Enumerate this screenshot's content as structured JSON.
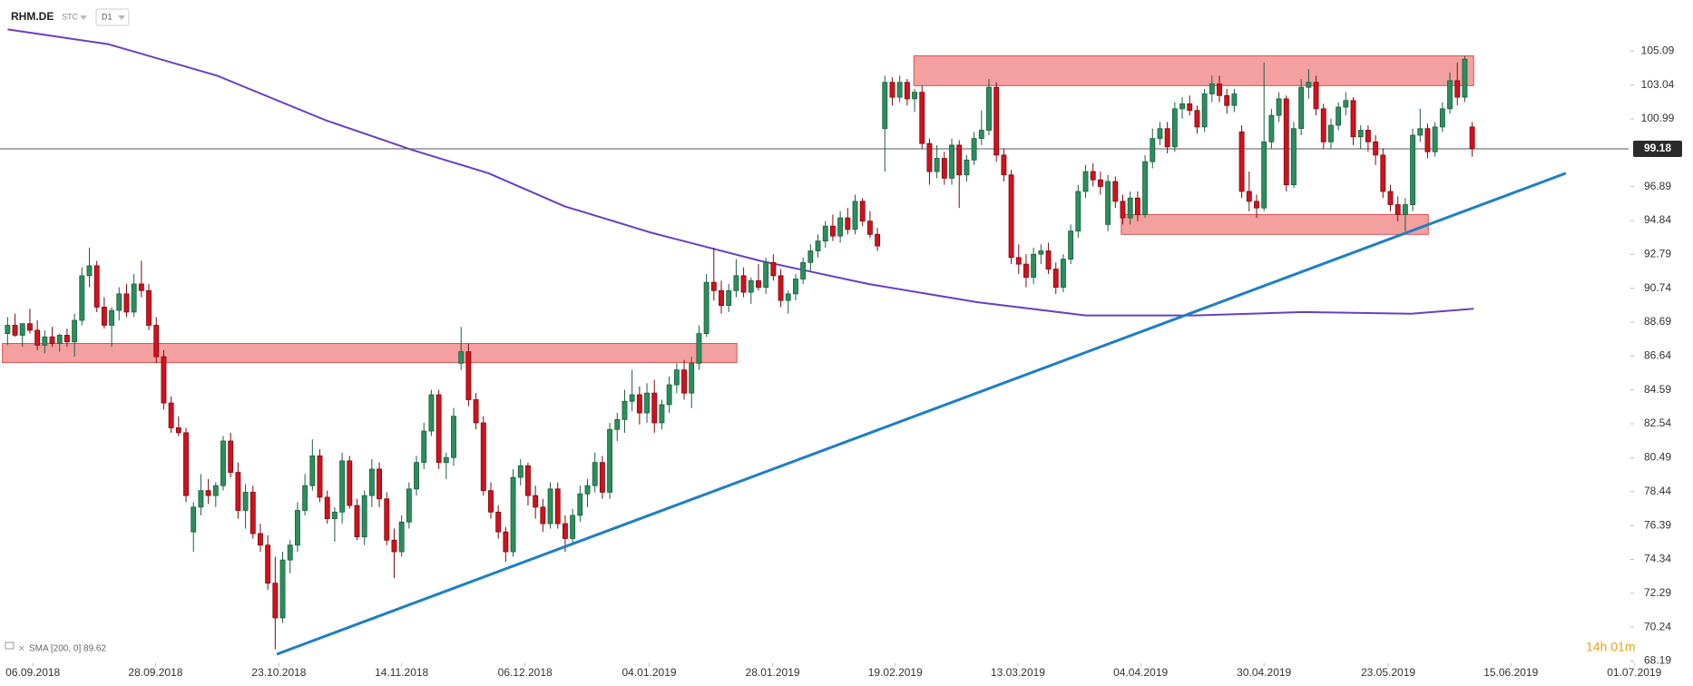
{
  "chart_data": {
    "type": "candlestick",
    "title": "RHM.DE",
    "exchange": "STC",
    "interval": "D1",
    "legend_label": "SMA [200, 0] 89.62",
    "timer": "14h 01m",
    "last_price": 99.18,
    "colors": {
      "up": "#2a8f5c",
      "down": "#d3111c",
      "sma": "#6a3fc4",
      "trend": "#1f7fc4",
      "zone": "#f08080"
    },
    "xlim": [
      -1.02,
      226.7
    ],
    "ylim": [
      68.19,
      108.18
    ],
    "yticks": [
      105.09,
      103.04,
      100.99,
      96.89,
      94.84,
      92.79,
      90.74,
      88.69,
      86.64,
      84.59,
      82.54,
      80.49,
      78.44,
      76.39,
      74.34,
      72.29,
      70.24,
      68.19
    ],
    "xticks": [
      {
        "value": 3.4,
        "label": "06.09.2018"
      },
      {
        "value": 19.9,
        "label": "28.09.2018"
      },
      {
        "value": 36.5,
        "label": "23.10.2018"
      },
      {
        "value": 53,
        "label": "14.11.2018"
      },
      {
        "value": 69.6,
        "label": "06.12.2018"
      },
      {
        "value": 86.3,
        "label": "04.01.2019"
      },
      {
        "value": 102.9,
        "label": "28.01.2019"
      },
      {
        "value": 119.4,
        "label": "19.02.2019"
      },
      {
        "value": 135.9,
        "label": "13.03.2019"
      },
      {
        "value": 152.4,
        "label": "04.04.2019"
      },
      {
        "value": 169,
        "label": "30.04.2019"
      },
      {
        "value": 185.7,
        "label": "23.05.2019"
      },
      {
        "value": 202.2,
        "label": "15.06.2019"
      },
      {
        "value": 218.8,
        "label": "01.07.2019"
      }
    ],
    "candles": [
      [
        88,
        89,
        87.3,
        88.5
      ],
      [
        88.5,
        89.2,
        87.8,
        87.9
      ],
      [
        87.9,
        88.6,
        87.2,
        88.6
      ],
      [
        88.6,
        89.5,
        88,
        88.2
      ],
      [
        88.2,
        88.8,
        87,
        87.3
      ],
      [
        87.3,
        88.2,
        86.8,
        87.8
      ],
      [
        87.8,
        88.4,
        87.2,
        87.4
      ],
      [
        87.4,
        88,
        86.9,
        87.9
      ],
      [
        87.9,
        88.3,
        87.2,
        87.5
      ],
      [
        87.5,
        89.2,
        86.6,
        88.8
      ],
      [
        88.8,
        92,
        88.5,
        91.5
      ],
      [
        91.5,
        93.2,
        90.8,
        92.1
      ],
      [
        92.1,
        92.4,
        89.3,
        89.6
      ],
      [
        89.6,
        90.2,
        88.3,
        88.5
      ],
      [
        88.5,
        89.6,
        87.2,
        89.4
      ],
      [
        89.4,
        90.8,
        88.8,
        90.4
      ],
      [
        90.4,
        91,
        89,
        89.3
      ],
      [
        89.3,
        91.6,
        89,
        91
      ],
      [
        91,
        92.4,
        90.2,
        90.6
      ],
      [
        90.6,
        91,
        88.2,
        88.5
      ],
      [
        88.5,
        89,
        86.2,
        86.6
      ],
      [
        86.6,
        87,
        83.4,
        83.8
      ],
      [
        83.8,
        84.2,
        82,
        82.3
      ],
      [
        82.3,
        83,
        81.8,
        82
      ],
      [
        82,
        82.3,
        77.8,
        78.2
      ],
      [
        76,
        77.8,
        74.8,
        77.5
      ],
      [
        77.5,
        79.5,
        77,
        78.5
      ],
      [
        78.5,
        79.2,
        77.7,
        78.2
      ],
      [
        78.2,
        79,
        77.5,
        78.8
      ],
      [
        78.8,
        81.8,
        78.5,
        81.5
      ],
      [
        81.5,
        82,
        79.3,
        79.6
      ],
      [
        79.6,
        80.2,
        76.8,
        77.3
      ],
      [
        77.3,
        78.9,
        76.2,
        78.4
      ],
      [
        78.4,
        78.8,
        75.6,
        75.9
      ],
      [
        75.9,
        76.5,
        74.8,
        75.2
      ],
      [
        75.2,
        75.8,
        72.5,
        72.9
      ],
      [
        72.9,
        74.5,
        68.9,
        70.8
      ],
      [
        70.8,
        74.8,
        70.5,
        74.3
      ],
      [
        74.3,
        75.5,
        73.5,
        75.2
      ],
      [
        75.2,
        77.8,
        74.8,
        77.3
      ],
      [
        77.3,
        79.5,
        77,
        78.8
      ],
      [
        78.8,
        81.6,
        78.5,
        80.6
      ],
      [
        80.6,
        81,
        77.8,
        78.1
      ],
      [
        78.1,
        78.5,
        76.5,
        76.8
      ],
      [
        76.8,
        77.5,
        75.4,
        77.2
      ],
      [
        77.2,
        80.8,
        76.5,
        80.3
      ],
      [
        80.3,
        80.6,
        77.4,
        77.6
      ],
      [
        77.6,
        78,
        75.5,
        75.7
      ],
      [
        75.7,
        78.5,
        75.2,
        78.2
      ],
      [
        78.2,
        80.4,
        77.5,
        79.8
      ],
      [
        79.8,
        80.2,
        77.5,
        78
      ],
      [
        78,
        78.4,
        75.2,
        75.5
      ],
      [
        75.5,
        76.2,
        73.2,
        74.8
      ],
      [
        74.8,
        77,
        74.5,
        76.6
      ],
      [
        76.6,
        79,
        76.2,
        78.6
      ],
      [
        78.6,
        80.6,
        78.2,
        80.2
      ],
      [
        80.2,
        82.6,
        79.8,
        82.1
      ],
      [
        82.1,
        84.6,
        81.8,
        84.3
      ],
      [
        84.3,
        84.6,
        79.8,
        80.2
      ],
      [
        80.2,
        80.8,
        79.2,
        80.5
      ],
      [
        80.5,
        83.5,
        80,
        83
      ],
      [
        86.2,
        88.4,
        85.8,
        86.9
      ],
      [
        86.9,
        87.4,
        83.6,
        84
      ],
      [
        84,
        84.4,
        82.2,
        82.6
      ],
      [
        82.6,
        83,
        78.2,
        78.5
      ],
      [
        78.5,
        79,
        76.8,
        77.2
      ],
      [
        77.2,
        77.6,
        75.6,
        76
      ],
      [
        76,
        76.3,
        74.2,
        74.8
      ],
      [
        74.8,
        79.8,
        74.5,
        79.3
      ],
      [
        79.3,
        80.4,
        78.8,
        80
      ],
      [
        80,
        80.2,
        77.6,
        78.2
      ],
      [
        78.2,
        78.8,
        76.8,
        77.5
      ],
      [
        77.5,
        78,
        76,
        76.5
      ],
      [
        76.5,
        79,
        76.2,
        78.6
      ],
      [
        78.6,
        79,
        76.2,
        76.5
      ],
      [
        76.5,
        77,
        74.8,
        75.6
      ],
      [
        75.6,
        77.4,
        75.2,
        77
      ],
      [
        77,
        78.8,
        76.6,
        78.3
      ],
      [
        78.3,
        79.2,
        77.5,
        78.8
      ],
      [
        78.8,
        80.8,
        78.4,
        80.2
      ],
      [
        80.2,
        80.6,
        78,
        78.4
      ],
      [
        78.4,
        82.6,
        78,
        82.2
      ],
      [
        82.2,
        83.2,
        81.5,
        82.8
      ],
      [
        82.8,
        84.6,
        82,
        83.9
      ],
      [
        83.9,
        85.8,
        83.3,
        84.3
      ],
      [
        84.3,
        84.8,
        82.5,
        83.2
      ],
      [
        83.2,
        85,
        82.6,
        84.4
      ],
      [
        84.4,
        85.2,
        82,
        82.6
      ],
      [
        82.6,
        84,
        82.2,
        83.7
      ],
      [
        83.7,
        85.4,
        83.2,
        84.9
      ],
      [
        84.9,
        86.2,
        84.4,
        85.8
      ],
      [
        85.8,
        86.4,
        84,
        84.4
      ],
      [
        84.4,
        86.6,
        83.5,
        86.2
      ],
      [
        86.2,
        88.5,
        85.8,
        88
      ],
      [
        88,
        91.6,
        87.8,
        91.1
      ],
      [
        91.1,
        93.2,
        90,
        90.6
      ],
      [
        90.6,
        91.2,
        89.2,
        89.7
      ],
      [
        89.7,
        91,
        89.3,
        90.6
      ],
      [
        90.6,
        92.5,
        90.2,
        91.5
      ],
      [
        91.5,
        92,
        90.2,
        90.5
      ],
      [
        90.5,
        91.4,
        89.8,
        91.2
      ],
      [
        91.2,
        92.2,
        90.6,
        90.8
      ],
      [
        90.8,
        92.6,
        90.4,
        92.3
      ],
      [
        92.3,
        92.8,
        91.2,
        91.5
      ],
      [
        91.5,
        91.9,
        89.6,
        90
      ],
      [
        90,
        90.6,
        89.2,
        90.4
      ],
      [
        90.4,
        91.6,
        90,
        91.3
      ],
      [
        91.3,
        92.6,
        91,
        92.3
      ],
      [
        92.3,
        93.4,
        91.8,
        93
      ],
      [
        93,
        94,
        92.6,
        93.6
      ],
      [
        93.6,
        94.8,
        93.2,
        94.5
      ],
      [
        94.5,
        95.2,
        93.6,
        93.9
      ],
      [
        93.9,
        95.4,
        93.5,
        95
      ],
      [
        95,
        95.6,
        94,
        94.3
      ],
      [
        94.3,
        96.4,
        94,
        96
      ],
      [
        96,
        96.2,
        94.5,
        94.8
      ],
      [
        94.8,
        95.4,
        93.8,
        94
      ],
      [
        94,
        94.4,
        93,
        93.3
      ],
      [
        100.4,
        103.6,
        97.8,
        103.2
      ],
      [
        103.2,
        103.5,
        101.8,
        102.3
      ],
      [
        102.3,
        103.6,
        102,
        103.2
      ],
      [
        103.2,
        103.4,
        101.8,
        102.2
      ],
      [
        102.2,
        102.8,
        101.4,
        102.6
      ],
      [
        102.6,
        103,
        99.2,
        99.5
      ],
      [
        99.5,
        99.8,
        97,
        97.8
      ],
      [
        97.8,
        99.4,
        97.4,
        98.6
      ],
      [
        98.6,
        99,
        97,
        97.4
      ],
      [
        97.4,
        99.8,
        97,
        99.4
      ],
      [
        99.4,
        99.7,
        95.6,
        97.6
      ],
      [
        97.6,
        98.8,
        97.2,
        98.5
      ],
      [
        98.5,
        100.2,
        98.2,
        99.8
      ],
      [
        99.8,
        101.5,
        99.4,
        100.3
      ],
      [
        100.3,
        103.4,
        100,
        102.9
      ],
      [
        102.9,
        103.2,
        98.4,
        98.8
      ],
      [
        98.8,
        99.2,
        97.2,
        97.6
      ],
      [
        97.6,
        97.9,
        92.2,
        92.6
      ],
      [
        92.6,
        93.4,
        91.6,
        92.2
      ],
      [
        92.2,
        92.8,
        90.8,
        91.4
      ],
      [
        91.4,
        93.2,
        91,
        92.8
      ],
      [
        92.8,
        93.4,
        92.2,
        93
      ],
      [
        93,
        93.5,
        91.6,
        91.9
      ],
      [
        91.9,
        92.3,
        90.4,
        90.8
      ],
      [
        90.8,
        92.8,
        90.5,
        92.5
      ],
      [
        92.5,
        94.6,
        92.2,
        94.2
      ],
      [
        94.2,
        97,
        93.8,
        96.6
      ],
      [
        96.6,
        98.2,
        96.2,
        97.8
      ],
      [
        97.8,
        98.3,
        96.9,
        97.3
      ],
      [
        97.3,
        97.8,
        96.4,
        96.9
      ],
      [
        94.6,
        97.6,
        94.2,
        97.2
      ],
      [
        97.2,
        97.5,
        95.6,
        96
      ],
      [
        96,
        96.4,
        94.6,
        95
      ],
      [
        95,
        96.6,
        94.6,
        96.2
      ],
      [
        96.2,
        96.6,
        94.8,
        95.2
      ],
      [
        95.2,
        98.8,
        95,
        98.4
      ],
      [
        98.4,
        100.4,
        98,
        99.8
      ],
      [
        99.8,
        100.8,
        99.4,
        100.4
      ],
      [
        100.4,
        100.8,
        98.9,
        99.3
      ],
      [
        99.3,
        102,
        99,
        101.6
      ],
      [
        101.6,
        102.3,
        101,
        101.9
      ],
      [
        101.9,
        102.4,
        101.2,
        101.5
      ],
      [
        101.5,
        101.8,
        100.1,
        100.5
      ],
      [
        100.5,
        102.8,
        100.2,
        102.5
      ],
      [
        102.5,
        103.6,
        102,
        103.1
      ],
      [
        103.1,
        103.6,
        102,
        102.4
      ],
      [
        102.4,
        102.8,
        101.3,
        101.8
      ],
      [
        101.8,
        102.8,
        101.4,
        102.5
      ],
      [
        100.2,
        100.6,
        96.2,
        96.6
      ],
      [
        96.6,
        97.8,
        95.4,
        96
      ],
      [
        96,
        96.4,
        95,
        95.6
      ],
      [
        95.6,
        104.4,
        95.4,
        99.6
      ],
      [
        99.6,
        101.6,
        99.2,
        101.2
      ],
      [
        101.2,
        102.6,
        100.8,
        102.2
      ],
      [
        102.2,
        102.4,
        96.6,
        97
      ],
      [
        97,
        100.8,
        96.8,
        100.4
      ],
      [
        100.4,
        103.4,
        100,
        102.9
      ],
      [
        102.9,
        104,
        102.2,
        103.2
      ],
      [
        103.2,
        103.6,
        101.2,
        101.6
      ],
      [
        101.6,
        101.9,
        99.2,
        99.6
      ],
      [
        99.6,
        101,
        99.2,
        100.6
      ],
      [
        100.6,
        102,
        100.3,
        101.7
      ],
      [
        101.7,
        102.6,
        101.2,
        102.1
      ],
      [
        102.1,
        102.3,
        99.4,
        99.9
      ],
      [
        99.9,
        100.6,
        99.2,
        100.3
      ],
      [
        100.3,
        100.6,
        99,
        99.6
      ],
      [
        99.6,
        100,
        98.2,
        98.8
      ],
      [
        98.8,
        99.2,
        96.2,
        96.6
      ],
      [
        96.6,
        97,
        95.4,
        95.8
      ],
      [
        95.8,
        96.3,
        94.8,
        95.2
      ],
      [
        95.2,
        96.2,
        94.2,
        95.8
      ],
      [
        95.8,
        100.4,
        95.4,
        100
      ],
      [
        100,
        101.6,
        99.6,
        100.4
      ],
      [
        100.4,
        100.7,
        98.6,
        99
      ],
      [
        99,
        100.8,
        98.7,
        100.5
      ],
      [
        100.5,
        102,
        100.2,
        101.6
      ],
      [
        101.6,
        103.8,
        101.3,
        103.3
      ],
      [
        103.3,
        104.4,
        101.8,
        102.3
      ],
      [
        102.3,
        104.8,
        102,
        104.6
      ],
      [
        100.5,
        100.8,
        98.7,
        99.18
      ]
    ],
    "sma": {
      "x": [
        0,
        13.6,
        28.2,
        42.8,
        54.5,
        64.7,
        74.9,
        86.6,
        101.2,
        115.8,
        130.4,
        145,
        159.6,
        174.2,
        188.8,
        197.2
      ],
      "values": [
        106.4,
        105.5,
        103.6,
        100.9,
        99.1,
        97.7,
        95.7,
        94.1,
        92.4,
        91.0,
        89.9,
        89.1,
        89.1,
        89.3,
        89.2,
        89.5
      ]
    },
    "trendline": {
      "x": [
        36.2,
        209.6
      ],
      "values": [
        68.6,
        97.7
      ]
    },
    "zones": [
      {
        "x": [
          -0.7,
          98.1
        ],
        "values": [
          87.4,
          86.25
        ]
      },
      {
        "x": [
          121.9,
          197.2
        ],
        "values": [
          104.8,
          103.0
        ]
      },
      {
        "x": [
          149.8,
          191.1
        ],
        "values": [
          95.2,
          94.0
        ]
      }
    ]
  }
}
